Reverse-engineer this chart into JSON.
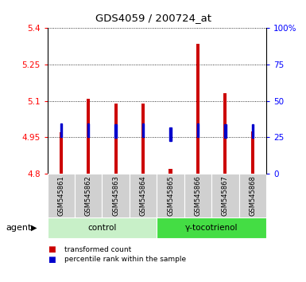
{
  "title": "GDS4059 / 200724_at",
  "samples": [
    "GSM545861",
    "GSM545862",
    "GSM545863",
    "GSM545864",
    "GSM545865",
    "GSM545866",
    "GSM545867",
    "GSM545868"
  ],
  "transformed_counts": [
    4.97,
    5.11,
    5.09,
    5.09,
    4.82,
    5.335,
    5.13,
    4.975
  ],
  "percentile_ranks": [
    30,
    30,
    29,
    30,
    27,
    30,
    29,
    29
  ],
  "bar_bottom": 4.8,
  "ylim": [
    4.8,
    5.4
  ],
  "yticks": [
    4.8,
    4.95,
    5.1,
    5.25,
    5.4
  ],
  "right_yticks": [
    0,
    25,
    50,
    75,
    100
  ],
  "right_ylim": [
    0,
    100
  ],
  "control_label": "control",
  "treatment_label": "γ-tocotrienol",
  "agent_label": "agent",
  "bar_color": "#cc0000",
  "percentile_color": "#0000cc",
  "control_bg": "#c8f0c8",
  "treatment_bg": "#44dd44",
  "sample_bg": "#d0d0d0",
  "legend_red_label": "transformed count",
  "legend_blue_label": "percentile rank within the sample",
  "grid_color": "#000000",
  "bar_width": 0.12,
  "blue_sq_size": 0.07
}
